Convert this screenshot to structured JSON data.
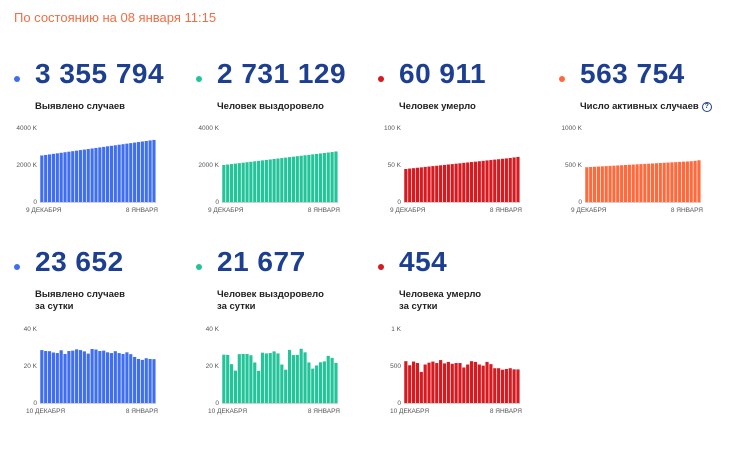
{
  "timestamp": "По состоянию на 08 января 11:15",
  "cards": [
    {
      "value": "3 355 794",
      "label": [
        "Выявлено случаев"
      ],
      "info": false,
      "color": "#3f6ff0",
      "chart_data": {
        "type": "bar",
        "ylim": [
          0,
          4000
        ],
        "yticks": [
          0,
          2000,
          4000
        ],
        "ytick_labels": [
          "0",
          "2000 K",
          "4000 K"
        ],
        "xlabels": [
          "9 ДЕКАБРЯ",
          "8 ЯНВАРЯ"
        ],
        "values": [
          2515,
          2544,
          2573,
          2603,
          2632,
          2661,
          2690,
          2719,
          2748,
          2777,
          2806,
          2835,
          2864,
          2893,
          2922,
          2951,
          2980,
          3009,
          3038,
          3067,
          3096,
          3125,
          3154,
          3183,
          3212,
          3241,
          3270,
          3299,
          3328,
          3356
        ]
      }
    },
    {
      "value": "2 731 129",
      "label": [
        "Человек выздоровело"
      ],
      "info": false,
      "color": "#23c49a",
      "chart_data": {
        "type": "bar",
        "ylim": [
          0,
          4000
        ],
        "yticks": [
          0,
          2000,
          4000
        ],
        "ytick_labels": [
          "0",
          "2000 K",
          "4000 K"
        ],
        "xlabels": [
          "9 ДЕКАБРЯ",
          "8 ЯНВАРЯ"
        ],
        "values": [
          2000,
          2025,
          2050,
          2075,
          2100,
          2125,
          2150,
          2175,
          2200,
          2225,
          2250,
          2275,
          2300,
          2325,
          2350,
          2375,
          2400,
          2425,
          2450,
          2475,
          2500,
          2525,
          2550,
          2575,
          2600,
          2625,
          2650,
          2675,
          2700,
          2731
        ]
      }
    },
    {
      "value": "60 911",
      "label": [
        "Человек умерло"
      ],
      "info": false,
      "color": "#d71920",
      "chart_data": {
        "type": "bar",
        "ylim": [
          0,
          100
        ],
        "yticks": [
          0,
          50,
          100
        ],
        "ytick_labels": [
          "0",
          "50 K",
          "100 K"
        ],
        "xlabels": [
          "9 ДЕКАБРЯ",
          "8 ЯНВАРЯ"
        ],
        "values": [
          44.6,
          45.2,
          45.7,
          46.3,
          46.8,
          47.4,
          47.9,
          48.5,
          49.0,
          49.6,
          50.1,
          50.7,
          51.2,
          51.8,
          52.3,
          52.9,
          53.4,
          54.0,
          54.5,
          55.1,
          55.6,
          56.2,
          56.7,
          57.3,
          57.8,
          58.4,
          58.9,
          59.5,
          60.2,
          60.9
        ]
      }
    },
    {
      "value": "563 754",
      "label": [
        "Число активных случаев"
      ],
      "info": true,
      "color": "#ff6a3d",
      "chart_data": {
        "type": "bar",
        "ylim": [
          0,
          1000
        ],
        "yticks": [
          0,
          500,
          1000
        ],
        "ytick_labels": [
          "0",
          "500 K",
          "1000 K"
        ],
        "xlabels": [
          "9 ДЕКАБРЯ",
          "8 ЯНВАРЯ"
        ],
        "values": [
          470,
          473,
          476,
          479,
          482,
          485,
          488,
          491,
          494,
          497,
          500,
          503,
          506,
          509,
          512,
          515,
          518,
          521,
          524,
          527,
          530,
          533,
          536,
          539,
          542,
          545,
          548,
          551,
          556,
          564
        ]
      }
    },
    {
      "value": "23 652",
      "label": [
        "Выявлено случаев",
        "за сутки"
      ],
      "info": false,
      "color": "#3f6ff0",
      "chart_data": {
        "type": "bar",
        "ylim": [
          0,
          40
        ],
        "yticks": [
          0,
          20,
          40
        ],
        "ytick_labels": [
          "0",
          "20 K",
          "40 K"
        ],
        "xlabels": [
          "10 ДЕКАБРЯ",
          "8 ЯНВАРЯ"
        ],
        "values": [
          28.6,
          28.1,
          28.0,
          27.3,
          27.0,
          28.5,
          26.5,
          28.1,
          28.3,
          29.0,
          28.6,
          27.9,
          26.7,
          29.2,
          28.9,
          28.1,
          28.3,
          27.4,
          27.0,
          28.0,
          27.0,
          26.5,
          27.4,
          26.4,
          24.9,
          23.8,
          23.3,
          24.2,
          23.8,
          23.7
        ]
      }
    },
    {
      "value": "21 677",
      "label": [
        "Человек выздоровело",
        "за сутки"
      ],
      "info": false,
      "color": "#23c49a",
      "chart_data": {
        "type": "bar",
        "ylim": [
          0,
          40
        ],
        "yticks": [
          0,
          20,
          40
        ],
        "ytick_labels": [
          "0",
          "20 K",
          "40 K"
        ],
        "xlabels": [
          "10 ДЕКАБРЯ",
          "8 ЯНВАРЯ"
        ],
        "values": [
          26.1,
          26.0,
          21.0,
          17.5,
          26.4,
          26.5,
          26.5,
          25.8,
          21.9,
          17.4,
          27.2,
          26.8,
          27.0,
          27.9,
          26.8,
          20.8,
          18.0,
          28.7,
          25.9,
          26.0,
          29.3,
          27.4,
          21.9,
          18.6,
          20.3,
          22.0,
          22.5,
          25.5,
          24.4,
          21.7
        ]
      }
    },
    {
      "value": "454",
      "label": [
        "Человека умерло",
        "за сутки"
      ],
      "info": false,
      "color": "#d71920",
      "chart_data": {
        "type": "bar",
        "ylim": [
          0,
          1000
        ],
        "yticks": [
          0,
          500,
          1000
        ],
        "ytick_labels": [
          "0",
          "500",
          "1 K"
        ],
        "xlabels": [
          "10 ДЕКАБРЯ",
          "8 ЯНВАРЯ"
        ],
        "values": [
          565,
          510,
          560,
          540,
          420,
          520,
          545,
          560,
          540,
          580,
          535,
          555,
          530,
          540,
          540,
          480,
          520,
          565,
          555,
          520,
          505,
          555,
          525,
          470,
          470,
          450,
          460,
          470,
          455,
          454
        ]
      }
    }
  ]
}
